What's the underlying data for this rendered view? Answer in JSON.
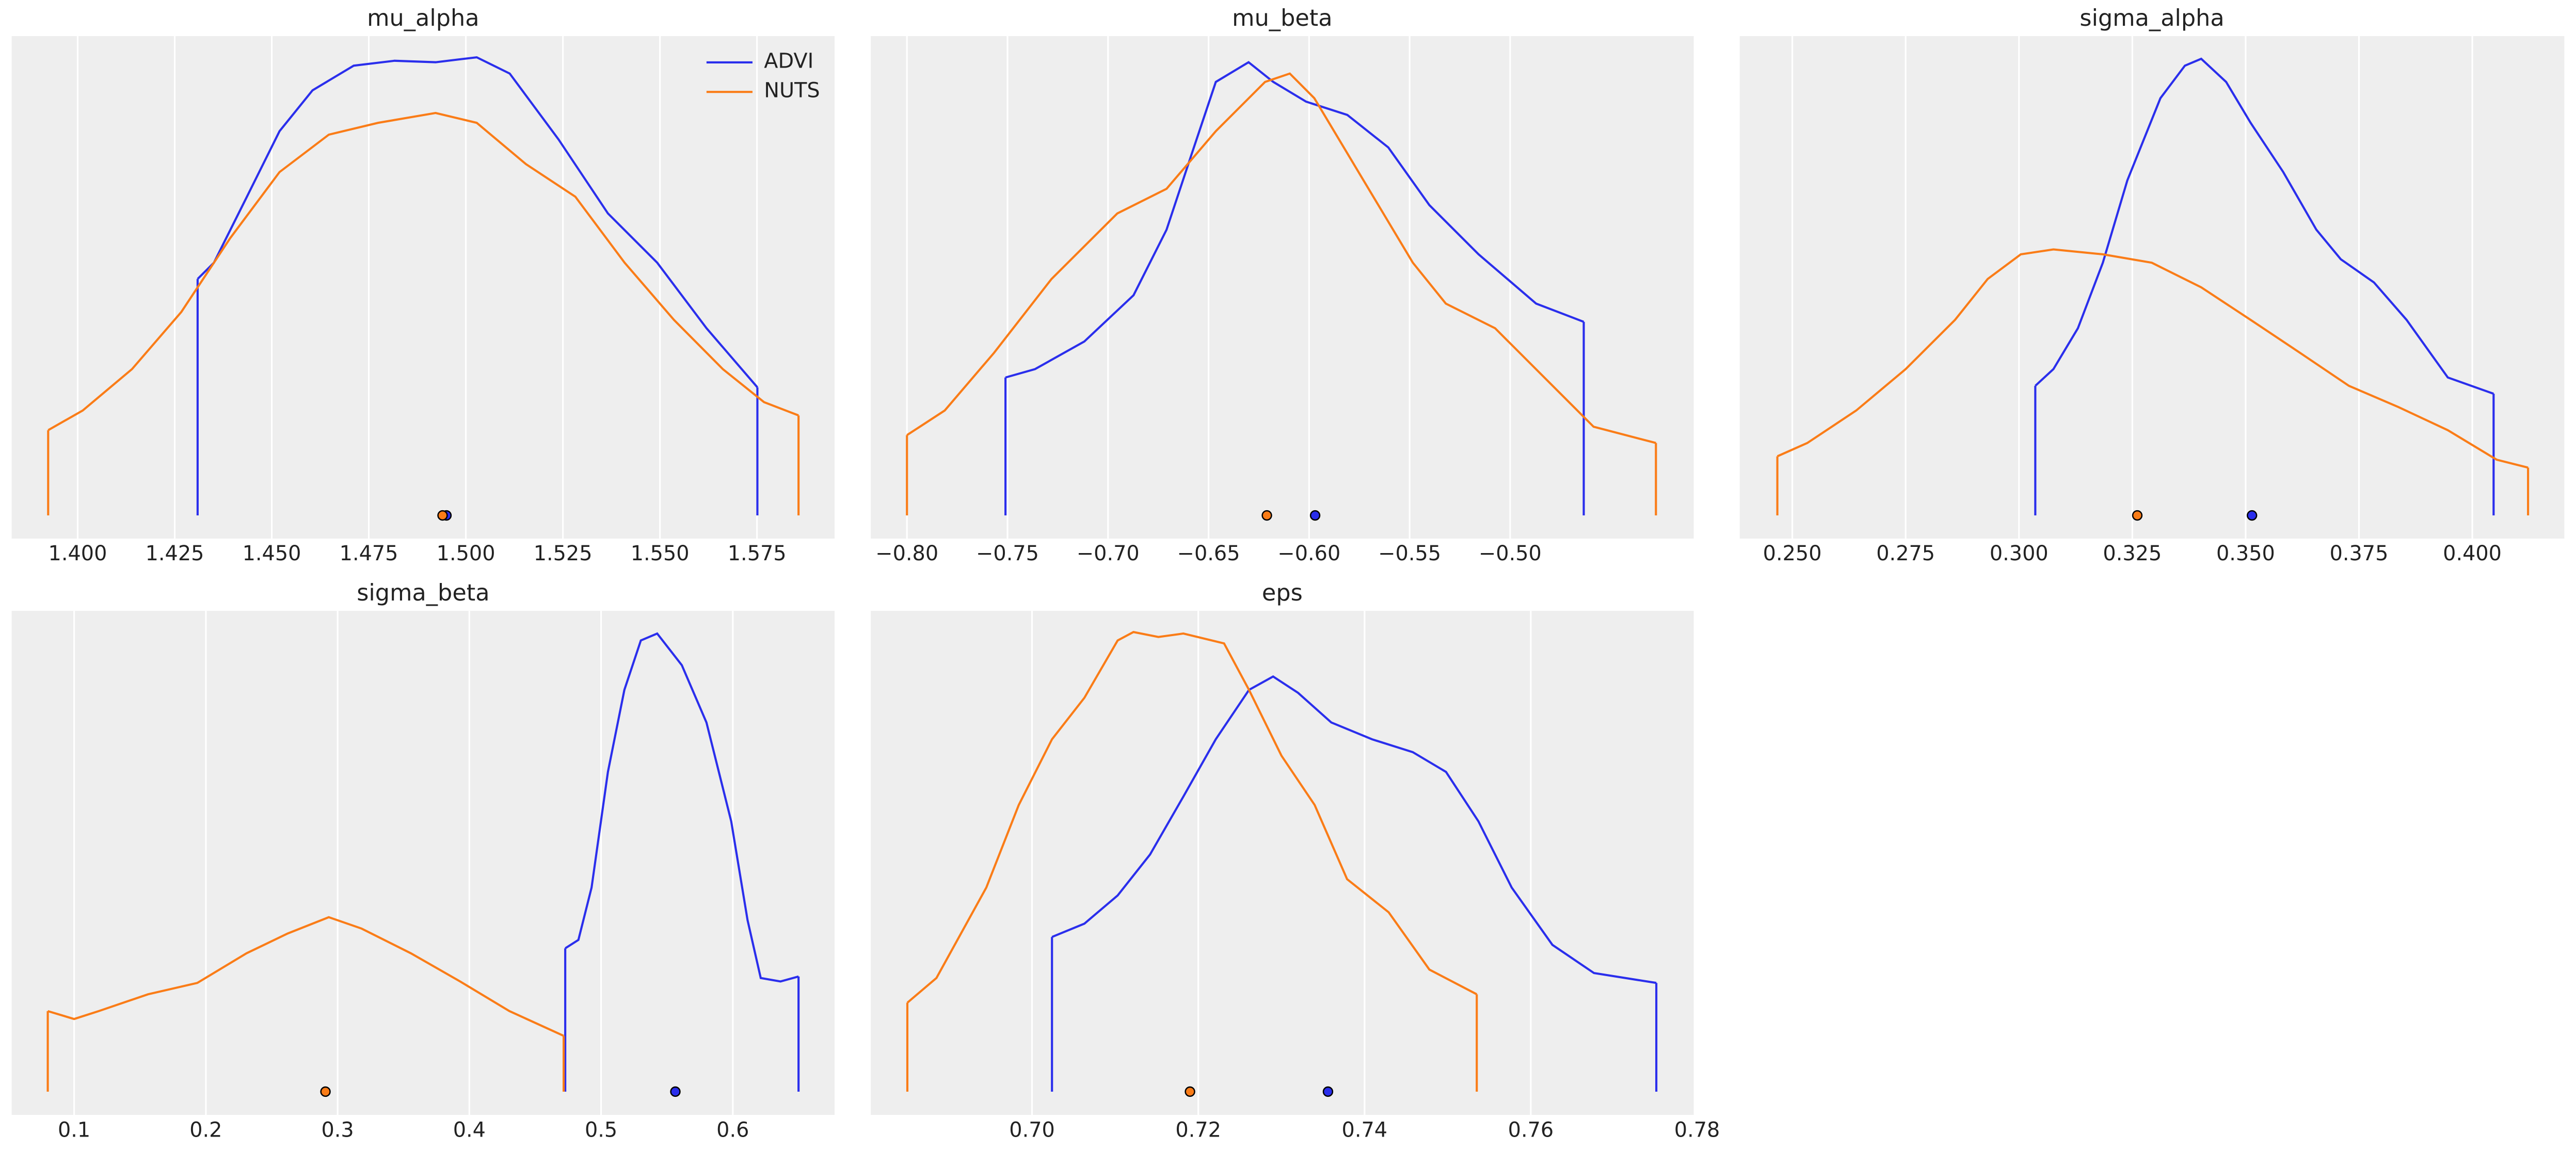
{
  "chart_data": [
    {
      "type": "line",
      "title": "mu_alpha",
      "grid": "x",
      "legend": "upper right",
      "xlim": [
        1.383,
        1.595
      ],
      "ylim": [
        -0.47,
        9.73
      ],
      "xticks": [
        {
          "value": 1.4,
          "label": "1.400"
        },
        {
          "value": 1.425,
          "label": "1.425"
        },
        {
          "value": 1.45,
          "label": "1.450"
        },
        {
          "value": 1.475,
          "label": "1.475"
        },
        {
          "value": 1.5,
          "label": "1.500"
        },
        {
          "value": 1.525,
          "label": "1.525"
        },
        {
          "value": 1.55,
          "label": "1.550"
        },
        {
          "value": 1.575,
          "label": "1.575"
        }
      ],
      "series": [
        {
          "name": "ADVI",
          "color": "#2a2eec",
          "point": 1.495,
          "x": [
            1.4309,
            1.4351,
            1.4436,
            1.452,
            1.4605,
            1.4711,
            1.4816,
            1.4922,
            1.5028,
            1.5113,
            1.5239,
            1.5366,
            1.5493,
            1.562,
            1.5751
          ],
          "values": [
            4.8,
            5.13,
            6.47,
            7.8,
            8.63,
            9.13,
            9.23,
            9.2,
            9.3,
            8.97,
            7.63,
            6.13,
            5.13,
            3.8,
            2.6
          ]
        },
        {
          "name": "NUTS",
          "color": "#fa7c17",
          "point": 1.494,
          "x": [
            1.3924,
            1.4013,
            1.414,
            1.4267,
            1.4393,
            1.452,
            1.4647,
            1.4774,
            1.4922,
            1.5028,
            1.5155,
            1.5282,
            1.5409,
            1.5536,
            1.5662,
            1.5768,
            1.5857
          ],
          "values": [
            1.73,
            2.13,
            2.97,
            4.13,
            5.63,
            6.97,
            7.73,
            7.97,
            8.17,
            7.97,
            7.13,
            6.47,
            5.13,
            3.97,
            2.97,
            2.3,
            2.03
          ]
        }
      ]
    },
    {
      "type": "line",
      "title": "mu_beta",
      "grid": "x",
      "xlim": [
        -0.818,
        -0.4087
      ],
      "ylim": [
        -0.47,
        9.73
      ],
      "xticks": [
        {
          "value": -0.8,
          "label": "−0.80"
        },
        {
          "value": -0.75,
          "label": "−0.75"
        },
        {
          "value": -0.7,
          "label": "−0.70"
        },
        {
          "value": -0.65,
          "label": "−0.65"
        },
        {
          "value": -0.6,
          "label": "−0.60"
        },
        {
          "value": -0.55,
          "label": "−0.55"
        },
        {
          "value": -0.5,
          "label": "−0.50"
        }
      ],
      "series": [
        {
          "color": "#2a2eec",
          "point": -0.597,
          "x": [
            -0.751,
            -0.7363,
            -0.7118,
            -0.6873,
            -0.6709,
            -0.6587,
            -0.6464,
            -0.6301,
            -0.6178,
            -0.6015,
            -0.581,
            -0.5606,
            -0.5402,
            -0.5157,
            -0.4871,
            -0.4634
          ],
          "values": [
            2.8,
            2.97,
            3.53,
            4.47,
            5.8,
            7.3,
            8.8,
            9.2,
            8.8,
            8.4,
            8.13,
            7.47,
            6.3,
            5.3,
            4.3,
            3.93
          ]
        },
        {
          "color": "#fa7c17",
          "point": -0.621,
          "x": [
            -0.8,
            -0.7812,
            -0.7567,
            -0.7281,
            -0.6954,
            -0.6709,
            -0.6464,
            -0.6219,
            -0.6096,
            -0.5974,
            -0.5729,
            -0.5484,
            -0.532,
            -0.5075,
            -0.483,
            -0.4585,
            -0.4275
          ],
          "values": [
            1.63,
            2.13,
            3.3,
            4.8,
            6.13,
            6.63,
            7.8,
            8.8,
            8.97,
            8.47,
            6.8,
            5.13,
            4.3,
            3.8,
            2.8,
            1.8,
            1.47
          ]
        }
      ]
    },
    {
      "type": "line",
      "title": "sigma_alpha",
      "grid": "x",
      "xlim": [
        0.2384,
        0.4203
      ],
      "ylim": [
        -0.47,
        9.73
      ],
      "xticks": [
        {
          "value": 0.25,
          "label": "0.250"
        },
        0.275,
        {
          "value": 0.3,
          "label": "0.300"
        },
        0.325,
        {
          "value": 0.35,
          "label": "0.350"
        },
        0.375,
        {
          "value": 0.4,
          "label": "0.400"
        }
      ],
      "series": [
        {
          "color": "#2a2eec",
          "point": 0.3514,
          "x": [
            0.3036,
            0.3076,
            0.313,
            0.3185,
            0.3239,
            0.3312,
            0.3366,
            0.3402,
            0.3457,
            0.3511,
            0.3583,
            0.3656,
            0.371,
            0.3783,
            0.3855,
            0.3946,
            0.4047
          ],
          "values": [
            2.63,
            2.97,
            3.8,
            5.13,
            6.8,
            8.47,
            9.13,
            9.27,
            8.8,
            7.97,
            6.97,
            5.8,
            5.2,
            4.73,
            3.97,
            2.8,
            2.47
          ]
        },
        {
          "color": "#fa7c17",
          "point": 0.3261,
          "x": [
            0.2467,
            0.2533,
            0.2641,
            0.275,
            0.2859,
            0.2931,
            0.3004,
            0.3076,
            0.3185,
            0.3293,
            0.3402,
            0.3511,
            0.362,
            0.3728,
            0.3837,
            0.3946,
            0.4054,
            0.4123
          ],
          "values": [
            1.2,
            1.47,
            2.13,
            2.97,
            3.97,
            4.8,
            5.3,
            5.4,
            5.3,
            5.13,
            4.63,
            3.97,
            3.3,
            2.63,
            2.2,
            1.73,
            1.13,
            0.97
          ]
        }
      ]
    },
    {
      "type": "line",
      "title": "sigma_beta",
      "grid": "x",
      "xlim": [
        0.0526,
        0.6773
      ],
      "ylim": [
        -0.47,
        9.73
      ],
      "xticks": [
        0.1,
        0.2,
        0.3,
        0.4,
        0.5,
        0.6
      ],
      "series": [
        {
          "color": "#2a2eec",
          "point": 0.5564,
          "x": [
            0.4728,
            0.4828,
            0.4928,
            0.5052,
            0.5177,
            0.5302,
            0.5426,
            0.5613,
            0.58,
            0.5988,
            0.6112,
            0.6212,
            0.6362,
            0.6499
          ],
          "values": [
            2.9,
            3.07,
            4.13,
            6.47,
            8.13,
            9.13,
            9.27,
            8.63,
            7.47,
            5.47,
            3.47,
            2.3,
            2.23,
            2.33
          ]
        },
        {
          "color": "#fa7c17",
          "point": 0.2908,
          "x": [
            0.08,
            0.1,
            0.1187,
            0.1561,
            0.1935,
            0.2309,
            0.2621,
            0.2933,
            0.3182,
            0.3556,
            0.393,
            0.4304,
            0.4716
          ],
          "values": [
            1.63,
            1.47,
            1.63,
            1.97,
            2.2,
            2.8,
            3.2,
            3.53,
            3.3,
            2.8,
            2.23,
            1.63,
            1.13
          ]
        }
      ]
    },
    {
      "type": "line",
      "title": "eps",
      "grid": "x",
      "xlim": [
        0.6806,
        0.7796
      ],
      "ylim": [
        -0.47,
        9.73
      ],
      "xticks": [
        {
          "value": 0.7,
          "label": "0.70"
        },
        0.72,
        0.74,
        0.76,
        0.78
      ],
      "series": [
        {
          "color": "#2a2eec",
          "point": 0.7356,
          "x": [
            0.7024,
            0.7063,
            0.7103,
            0.7142,
            0.7182,
            0.7221,
            0.7261,
            0.729,
            0.732,
            0.736,
            0.7409,
            0.7458,
            0.7498,
            0.7537,
            0.7577,
            0.7626,
            0.7676,
            0.7751
          ],
          "values": [
            3.13,
            3.4,
            3.97,
            4.8,
            5.97,
            7.13,
            8.13,
            8.4,
            8.07,
            7.47,
            7.13,
            6.87,
            6.47,
            5.47,
            4.13,
            2.97,
            2.4,
            2.2
          ]
        },
        {
          "color": "#fa7c17",
          "point": 0.719,
          "x": [
            0.685,
            0.6885,
            0.6945,
            0.6984,
            0.7024,
            0.7063,
            0.7103,
            0.7122,
            0.7152,
            0.7182,
            0.7231,
            0.7261,
            0.73,
            0.734,
            0.7379,
            0.7429,
            0.7478,
            0.7535
          ],
          "values": [
            1.8,
            2.3,
            4.13,
            5.8,
            7.13,
            7.97,
            9.13,
            9.3,
            9.2,
            9.27,
            9.07,
            8.13,
            6.8,
            5.8,
            4.3,
            3.63,
            2.47,
            1.97
          ]
        }
      ]
    }
  ]
}
